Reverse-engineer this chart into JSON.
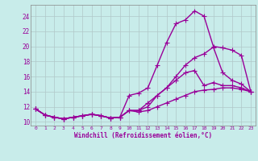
{
  "bg_color": "#c8ecea",
  "grid_color": "#b0c8c8",
  "line_color": "#990099",
  "marker": "+",
  "markersize": 4,
  "linewidth": 1.0,
  "xlabel": "Windchill (Refroidissement éolien,°C)",
  "yticks": [
    10,
    12,
    14,
    16,
    18,
    20,
    22,
    24
  ],
  "xticks": [
    0,
    1,
    2,
    3,
    4,
    5,
    6,
    7,
    8,
    9,
    10,
    11,
    12,
    13,
    14,
    15,
    16,
    17,
    18,
    19,
    20,
    21,
    22,
    23
  ],
  "xlim": [
    -0.5,
    23.5
  ],
  "ylim": [
    9.5,
    25.5
  ],
  "series": [
    [
      11.7,
      10.9,
      10.6,
      10.4,
      10.6,
      10.8,
      11.0,
      10.8,
      10.5,
      10.6,
      11.5,
      11.3,
      11.5,
      12.0,
      12.5,
      13.0,
      13.5,
      14.0,
      14.2,
      14.3,
      14.5,
      14.5,
      14.3,
      14.0
    ],
    [
      11.7,
      10.9,
      10.6,
      10.4,
      10.6,
      10.8,
      11.0,
      10.8,
      10.5,
      10.6,
      11.5,
      11.5,
      12.5,
      13.5,
      14.5,
      16.0,
      17.5,
      18.5,
      19.0,
      19.9,
      16.5,
      15.5,
      15.0,
      14.0
    ],
    [
      11.7,
      10.9,
      10.6,
      10.4,
      10.6,
      10.8,
      11.0,
      10.8,
      10.5,
      10.6,
      13.5,
      13.8,
      14.5,
      17.5,
      20.5,
      23.0,
      23.5,
      24.7,
      24.0,
      20.0,
      19.8,
      19.5,
      18.8,
      14.0
    ],
    [
      11.7,
      10.9,
      10.6,
      10.4,
      10.6,
      10.8,
      11.0,
      10.8,
      10.5,
      10.6,
      11.5,
      11.5,
      12.0,
      13.5,
      14.5,
      15.5,
      16.5,
      16.8,
      14.8,
      15.2,
      14.8,
      14.8,
      14.5,
      14.0
    ]
  ]
}
